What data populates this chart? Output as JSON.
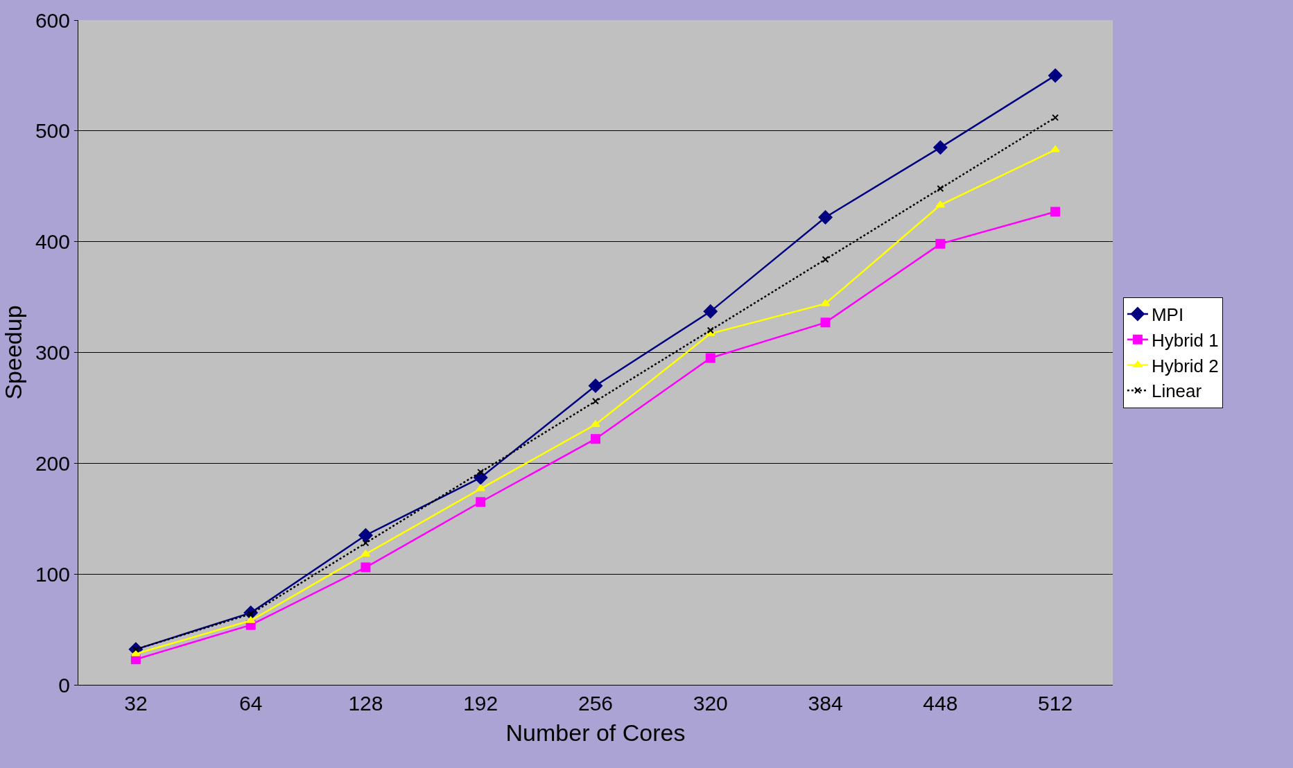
{
  "chart_data": {
    "type": "line",
    "xlabel": "Number of Cores",
    "ylabel": "Speedup",
    "categories": [
      "32",
      "64",
      "128",
      "192",
      "256",
      "320",
      "384",
      "448",
      "512"
    ],
    "series": [
      {
        "name": "MPI",
        "color": "#000080",
        "marker": "diamond",
        "line_style": "solid",
        "values": [
          32,
          65,
          135,
          187,
          270,
          337,
          422,
          485,
          550
        ]
      },
      {
        "name": "Hybrid 1",
        "color": "#ff00ff",
        "marker": "square",
        "line_style": "solid",
        "values": [
          23,
          54,
          106,
          165,
          222,
          295,
          327,
          398,
          427
        ]
      },
      {
        "name": "Hybrid 2",
        "color": "#ffff00",
        "marker": "triangle",
        "line_style": "solid",
        "values": [
          28,
          58,
          118,
          177,
          235,
          317,
          344,
          433,
          483
        ]
      },
      {
        "name": "Linear",
        "color": "#000000",
        "marker": "cross",
        "line_style": "dotted",
        "values": [
          32,
          64,
          128,
          192,
          256,
          320,
          384,
          448,
          512
        ]
      }
    ],
    "ylim": [
      0,
      600
    ],
    "yticks": [
      0,
      100,
      200,
      300,
      400,
      500,
      600
    ],
    "grid": "y",
    "legend": "right"
  }
}
